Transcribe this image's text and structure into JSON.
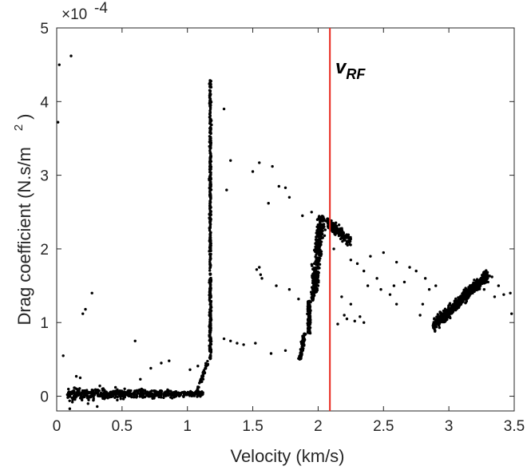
{
  "chart_data": {
    "type": "scatter",
    "title": "",
    "xlabel": "Velocity (km/s)",
    "ylabel": "Drag coefficient (N.s/m",
    "ylabel_superscript": "2",
    "ylabel_close": ")",
    "y_exponent_base": "×10",
    "y_exponent_power": "-4",
    "xlim": [
      0,
      3.5
    ],
    "ylim": [
      -0.2,
      5
    ],
    "xticks": [
      0,
      0.5,
      1,
      1.5,
      2,
      2.5,
      3,
      3.5
    ],
    "xtick_labels": [
      "0",
      "0.5",
      "1",
      "1.5",
      "2",
      "2.5",
      "3",
      "3.5"
    ],
    "yticks": [
      0,
      1,
      2,
      3,
      4,
      5
    ],
    "ytick_labels": [
      "0",
      "1",
      "2",
      "3",
      "4",
      "5"
    ],
    "grid": false,
    "marker_color": "#000000",
    "vertical_line": {
      "x": 2.09,
      "color": "#e8281e",
      "label_main": "v",
      "label_sub": "RF"
    },
    "series": [
      {
        "values": [
          [
            0.02,
            4.5
          ],
          [
            0.11,
            4.62
          ],
          [
            0.01,
            3.72
          ],
          [
            0.05,
            0.55
          ],
          [
            0.2,
            1.12
          ],
          [
            0.22,
            1.18
          ],
          [
            0.27,
            1.4
          ],
          [
            0.15,
            0.27
          ],
          [
            0.18,
            0.25
          ],
          [
            0.33,
            0.14
          ],
          [
            0.42,
            0.05
          ],
          [
            0.6,
            0.75
          ],
          [
            0.64,
            0.23
          ],
          [
            0.72,
            0.38
          ],
          [
            0.8,
            0.45
          ],
          [
            0.86,
            0.48
          ],
          [
            1.02,
            0.36
          ],
          [
            1.08,
            0.41
          ],
          [
            0.12,
            -0.08
          ],
          [
            0.19,
            0.02
          ],
          [
            0.28,
            0.08
          ],
          [
            0.35,
            0.1
          ],
          [
            0.45,
            0.12
          ],
          [
            0.52,
            0.1
          ],
          [
            0.24,
            -0.1
          ],
          [
            0.31,
            -0.14
          ],
          [
            0.1,
            -0.17
          ],
          [
            0.21,
            0.05
          ],
          [
            1.28,
            3.9
          ],
          [
            1.33,
            3.2
          ],
          [
            1.3,
            2.8
          ],
          [
            1.5,
            3.05
          ],
          [
            1.55,
            3.17
          ],
          [
            1.65,
            3.12
          ],
          [
            1.7,
            2.85
          ],
          [
            1.75,
            2.83
          ],
          [
            1.78,
            2.7
          ],
          [
            1.62,
            2.62
          ],
          [
            1.88,
            2.45
          ],
          [
            1.95,
            2.5
          ],
          [
            1.55,
            1.75
          ],
          [
            1.56,
            1.65
          ],
          [
            1.57,
            1.6
          ],
          [
            1.53,
            1.72
          ],
          [
            1.68,
            1.5
          ],
          [
            1.78,
            1.45
          ],
          [
            1.85,
            1.32
          ],
          [
            1.75,
            0.62
          ],
          [
            1.64,
            0.58
          ],
          [
            1.52,
            0.72
          ],
          [
            1.33,
            0.75
          ],
          [
            1.38,
            0.72
          ],
          [
            1.28,
            0.78
          ],
          [
            1.43,
            0.7
          ],
          [
            2.25,
            1.85
          ],
          [
            2.3,
            1.8
          ],
          [
            2.35,
            1.7
          ],
          [
            2.45,
            1.6
          ],
          [
            2.4,
            1.9
          ],
          [
            2.5,
            1.95
          ],
          [
            2.6,
            1.82
          ],
          [
            2.7,
            1.75
          ],
          [
            2.75,
            1.7
          ],
          [
            2.66,
            1.55
          ],
          [
            2.58,
            1.5
          ],
          [
            2.48,
            1.45
          ],
          [
            2.38,
            1.5
          ],
          [
            2.55,
            1.38
          ],
          [
            2.6,
            1.25
          ],
          [
            2.22,
            1.05
          ],
          [
            2.28,
            1.02
          ],
          [
            2.32,
            1.08
          ],
          [
            2.35,
            1.0
          ],
          [
            2.2,
            1.1
          ],
          [
            2.15,
            0.98
          ],
          [
            2.25,
            1.25
          ],
          [
            2.18,
            1.35
          ],
          [
            2.85,
            1.45
          ],
          [
            2.82,
            1.6
          ],
          [
            2.9,
            1.5
          ],
          [
            3.33,
            1.62
          ],
          [
            3.38,
            1.5
          ],
          [
            3.42,
            1.38
          ],
          [
            3.47,
            1.4
          ],
          [
            3.48,
            1.12
          ],
          [
            3.35,
            1.35
          ],
          [
            2.8,
            1.25
          ],
          [
            2.88,
            0.95
          ],
          [
            2.78,
            1.1
          ],
          [
            3.27,
            1.45
          ],
          [
            3.3,
            1.55
          ],
          [
            2.12,
            2.0
          ],
          [
            2.18,
            2.2
          ],
          [
            2.22,
            2.1
          ]
        ],
        "clusters": [
          {
            "x_min": 0.08,
            "x_max": 1.12,
            "y_center": 0.03,
            "y_spread": 0.12,
            "count": 520
          },
          {
            "x_min": 1.14,
            "x_max": 1.2,
            "y_min": 0.0,
            "y_max": 4.33,
            "count": 520
          },
          {
            "x_min": 1.88,
            "x_max": 2.07,
            "y_min": 0.5,
            "y_max": 2.45,
            "count": 560
          },
          {
            "x_min": 2.07,
            "x_max": 2.25,
            "y_min": 1.85,
            "y_max": 2.42,
            "count": 160
          },
          {
            "x_min": 2.88,
            "x_max": 3.3,
            "y_min": 0.8,
            "y_max": 1.75,
            "count": 600
          }
        ]
      }
    ]
  }
}
